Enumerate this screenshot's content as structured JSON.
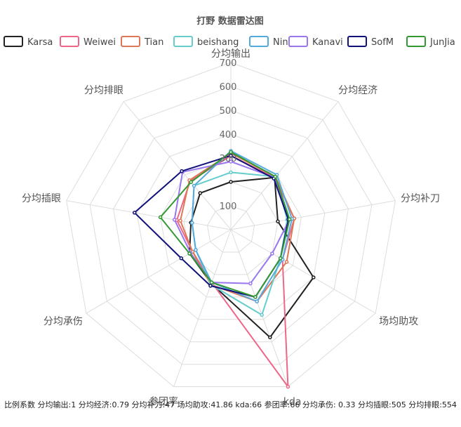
{
  "chart_data": {
    "type": "radar",
    "title": "打野 数据雷达图",
    "axes": [
      "分均输出",
      "分均经济",
      "分均补刀",
      "场均助攻",
      "kda",
      "参团率",
      "分均承伤",
      "分均插眼",
      "分均排眼"
    ],
    "rmax": 700,
    "ticks": [
      100,
      200,
      300,
      400,
      500,
      600,
      700
    ],
    "tick_labels_shown": [
      "100",
      "300",
      "400",
      "500",
      "600",
      "700"
    ],
    "legend_position": "top",
    "grid": true,
    "series": [
      {
        "name": "Karsa",
        "color": "#222222",
        "values": [
          200,
          285,
          200,
          400,
          480,
          240,
          200,
          170,
          200
        ]
      },
      {
        "name": "Weiwei",
        "color": "#ee6688",
        "values": [
          310,
          285,
          270,
          250,
          700,
          235,
          185,
          230,
          265
        ]
      },
      {
        "name": "Tian",
        "color": "#dd7755",
        "values": [
          320,
          290,
          270,
          270,
          320,
          245,
          185,
          215,
          270
        ]
      },
      {
        "name": "beishang",
        "color": "#66cccc",
        "values": [
          240,
          290,
          240,
          240,
          380,
          245,
          170,
          165,
          240
        ]
      },
      {
        "name": "Ning",
        "color": "#55aadd",
        "values": [
          330,
          300,
          260,
          250,
          320,
          235,
          170,
          165,
          240
        ]
      },
      {
        "name": "Kanavi",
        "color": "#9977ee",
        "values": [
          285,
          285,
          250,
          200,
          240,
          235,
          195,
          240,
          315
        ]
      },
      {
        "name": "SofM",
        "color": "#11117a",
        "values": [
          310,
          280,
          245,
          240,
          300,
          250,
          240,
          410,
          320
        ]
      },
      {
        "name": "JunJia",
        "color": "#339933",
        "values": [
          325,
          290,
          250,
          240,
          300,
          235,
          200,
          300,
          260
        ]
      }
    ]
  },
  "footer_text": "比例系数 分均输出:1 分均经济:0.79 分均补刀:47 场均助攻:41.86 kda:66 参团率:66 分均承伤: 0.33 分均插眼:505 分均排眼:554"
}
